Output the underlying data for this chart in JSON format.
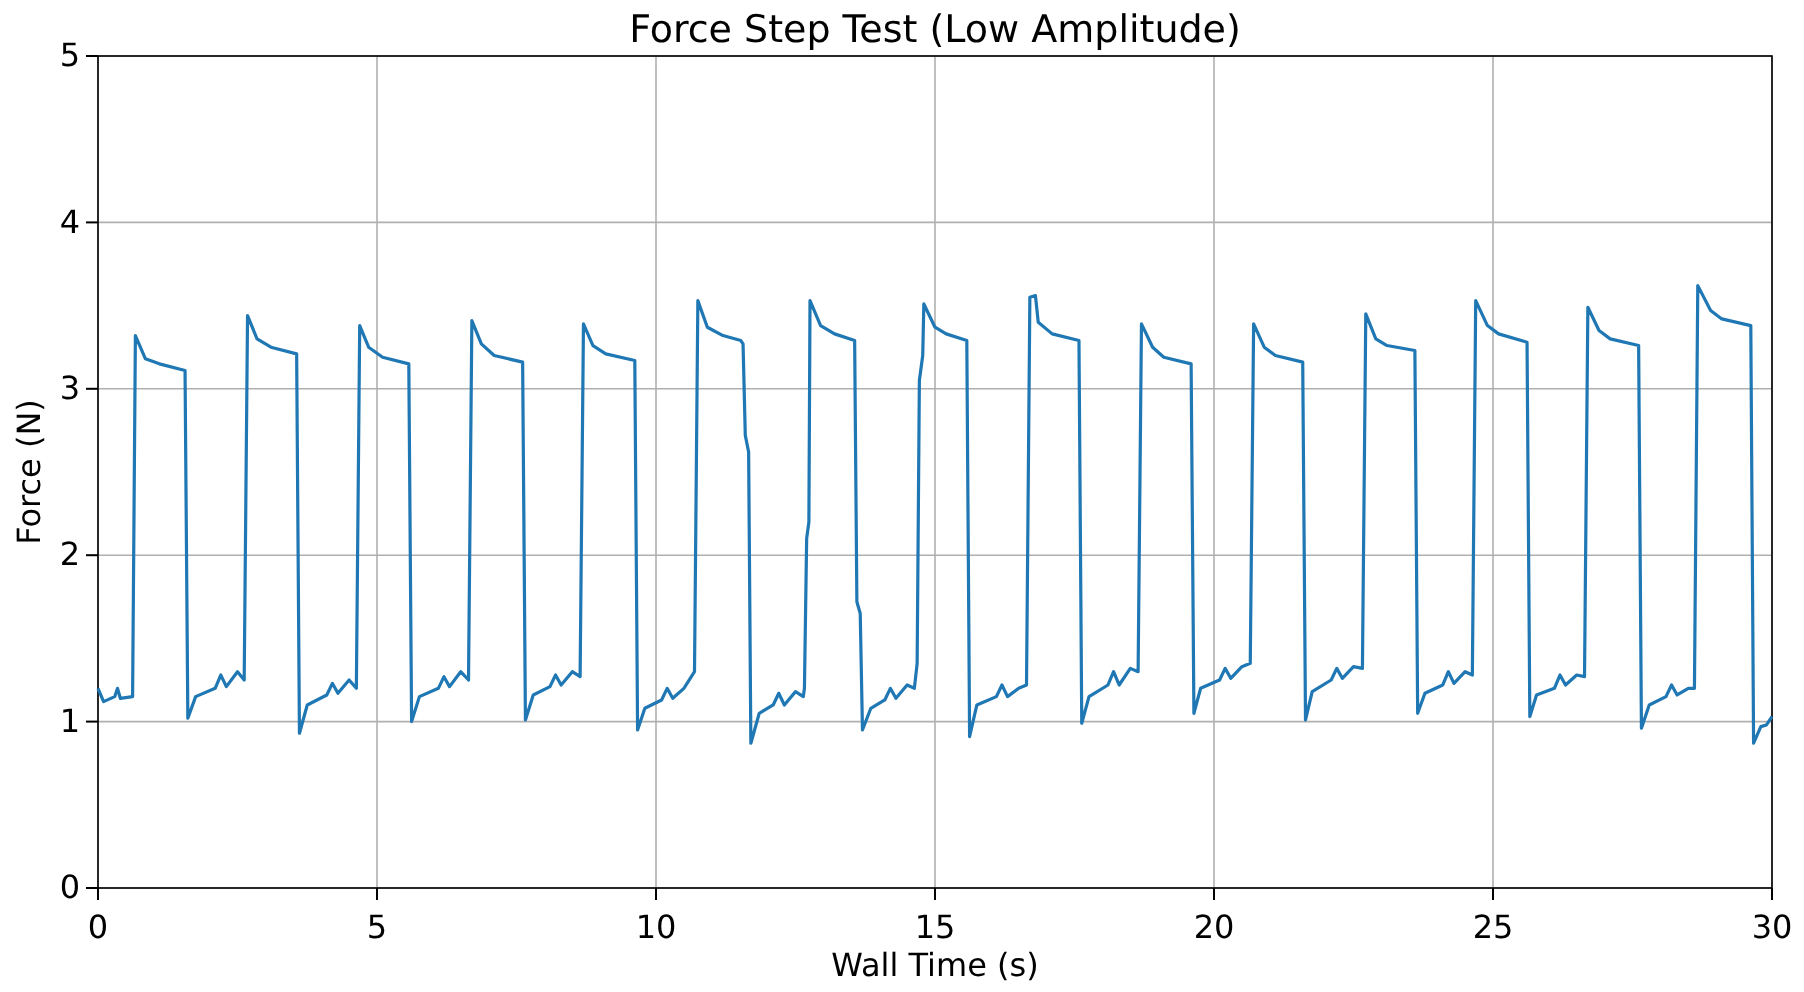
{
  "chart_data": {
    "type": "line",
    "title": "Force Step Test (Low Amplitude)",
    "xlabel": "Wall Time (s)",
    "ylabel": "Force (N)",
    "xlim": [
      0,
      30
    ],
    "ylim": [
      0,
      5
    ],
    "xticks": [
      0,
      5,
      10,
      15,
      20,
      25,
      30
    ],
    "yticks": [
      0,
      1,
      2,
      3,
      4,
      5
    ],
    "grid": true,
    "series": [
      {
        "color": "#1f77b4",
        "x": [
          0,
          0.1,
          0.3,
          0.35,
          0.4,
          0.62,
          0.67,
          0.85,
          1.1,
          1.56,
          1.61,
          1.75,
          2.1,
          2.2,
          2.3,
          2.5,
          2.62,
          2.68,
          2.85,
          3.1,
          3.56,
          3.61,
          3.75,
          4.1,
          4.2,
          4.3,
          4.5,
          4.63,
          4.69,
          4.85,
          5.1,
          5.57,
          5.62,
          5.76,
          6.1,
          6.2,
          6.3,
          6.5,
          6.64,
          6.7,
          6.87,
          7.1,
          7.61,
          7.66,
          7.8,
          8.1,
          8.2,
          8.3,
          8.5,
          8.64,
          8.7,
          8.87,
          9.1,
          9.62,
          9.67,
          9.8,
          10.1,
          10.2,
          10.3,
          10.5,
          10.69,
          10.75,
          10.92,
          11.2,
          11.52,
          11.56,
          11.6,
          11.66,
          11.7,
          11.85,
          12.1,
          12.2,
          12.3,
          12.5,
          12.64,
          12.66,
          12.7,
          12.74,
          12.76,
          12.95,
          13.2,
          13.56,
          13.6,
          13.66,
          13.7,
          13.85,
          14.1,
          14.2,
          14.3,
          14.5,
          14.63,
          14.68,
          14.72,
          14.78,
          14.8,
          15.0,
          15.2,
          15.57,
          15.62,
          15.75,
          16.1,
          16.2,
          16.3,
          16.5,
          16.64,
          16.7,
          16.8,
          16.85,
          17.1,
          17.58,
          17.63,
          17.76,
          18.1,
          18.2,
          18.3,
          18.5,
          18.64,
          18.7,
          18.9,
          19.1,
          19.59,
          19.64,
          19.76,
          20.1,
          20.2,
          20.3,
          20.5,
          20.65,
          20.71,
          20.9,
          21.1,
          21.59,
          21.64,
          21.76,
          22.1,
          22.2,
          22.3,
          22.5,
          22.66,
          22.72,
          22.9,
          23.1,
          23.6,
          23.65,
          23.78,
          24.1,
          24.2,
          24.3,
          24.5,
          24.63,
          24.69,
          24.9,
          25.1,
          25.61,
          25.66,
          25.78,
          26.1,
          26.2,
          26.3,
          26.5,
          26.64,
          26.7,
          26.9,
          27.1,
          27.61,
          27.66,
          27.8,
          28.1,
          28.2,
          28.3,
          28.5,
          28.61,
          28.67,
          28.9,
          29.1,
          29.62,
          29.67,
          29.8,
          29.9,
          30
        ],
        "values": [
          1.2,
          1.12,
          1.15,
          1.2,
          1.14,
          1.15,
          3.32,
          3.18,
          3.15,
          3.11,
          1.02,
          1.15,
          1.2,
          1.28,
          1.21,
          1.3,
          1.25,
          3.44,
          3.3,
          3.25,
          3.21,
          0.93,
          1.1,
          1.16,
          1.23,
          1.17,
          1.25,
          1.2,
          3.38,
          3.25,
          3.19,
          3.15,
          1.0,
          1.15,
          1.2,
          1.27,
          1.21,
          1.3,
          1.25,
          3.41,
          3.27,
          3.2,
          3.16,
          1.01,
          1.16,
          1.21,
          1.28,
          1.22,
          1.3,
          1.27,
          3.39,
          3.26,
          3.21,
          3.17,
          0.95,
          1.08,
          1.13,
          1.2,
          1.14,
          1.2,
          1.3,
          3.53,
          3.37,
          3.32,
          3.29,
          3.27,
          2.72,
          2.62,
          0.87,
          1.05,
          1.1,
          1.17,
          1.1,
          1.18,
          1.15,
          1.2,
          2.1,
          2.2,
          3.53,
          3.38,
          3.33,
          3.29,
          1.72,
          1.65,
          0.95,
          1.08,
          1.13,
          1.2,
          1.14,
          1.22,
          1.2,
          1.35,
          3.05,
          3.2,
          3.51,
          3.37,
          3.33,
          3.29,
          0.91,
          1.1,
          1.15,
          1.22,
          1.15,
          1.2,
          1.22,
          3.55,
          3.56,
          3.4,
          3.33,
          3.29,
          0.99,
          1.15,
          1.22,
          1.3,
          1.22,
          1.32,
          1.3,
          3.39,
          3.25,
          3.19,
          3.15,
          1.05,
          1.2,
          1.25,
          1.32,
          1.26,
          1.33,
          1.35,
          3.39,
          3.25,
          3.2,
          3.16,
          1.01,
          1.18,
          1.25,
          1.32,
          1.26,
          1.33,
          1.32,
          3.45,
          3.3,
          3.26,
          3.23,
          1.05,
          1.17,
          1.22,
          1.3,
          1.23,
          1.3,
          1.28,
          3.53,
          3.38,
          3.33,
          3.28,
          1.03,
          1.16,
          1.2,
          1.28,
          1.22,
          1.28,
          1.27,
          3.49,
          3.35,
          3.3,
          3.26,
          0.96,
          1.1,
          1.15,
          1.22,
          1.16,
          1.2,
          1.2,
          3.62,
          3.47,
          3.42,
          3.38,
          0.87,
          0.97,
          0.98,
          1.03
        ]
      }
    ]
  }
}
